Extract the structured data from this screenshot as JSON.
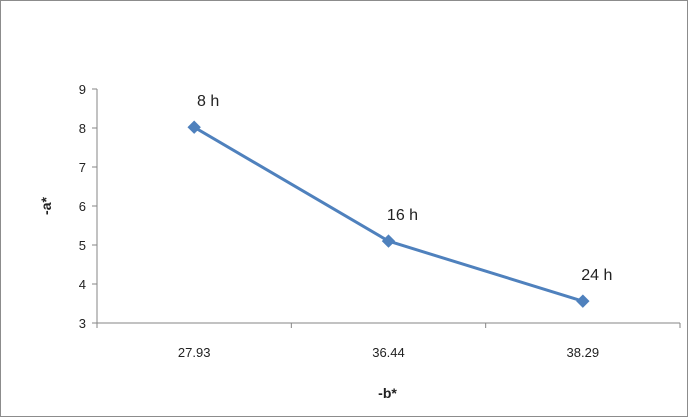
{
  "chart_data": {
    "type": "line",
    "categories": [
      "27.93",
      "36.44",
      "38.29"
    ],
    "series": [
      {
        "values": [
          8.02,
          5.1,
          3.56
        ],
        "point_labels": [
          "8 h",
          "16 h",
          "24 h"
        ],
        "color": "#4F81BD"
      }
    ],
    "title": "",
    "xlabel": "-b*",
    "ylabel": "-a*",
    "ylim": [
      3,
      9
    ],
    "yticks": [
      "3",
      "4",
      "5",
      "6",
      "7",
      "8",
      "9"
    ],
    "grid": false,
    "legend": "none"
  }
}
